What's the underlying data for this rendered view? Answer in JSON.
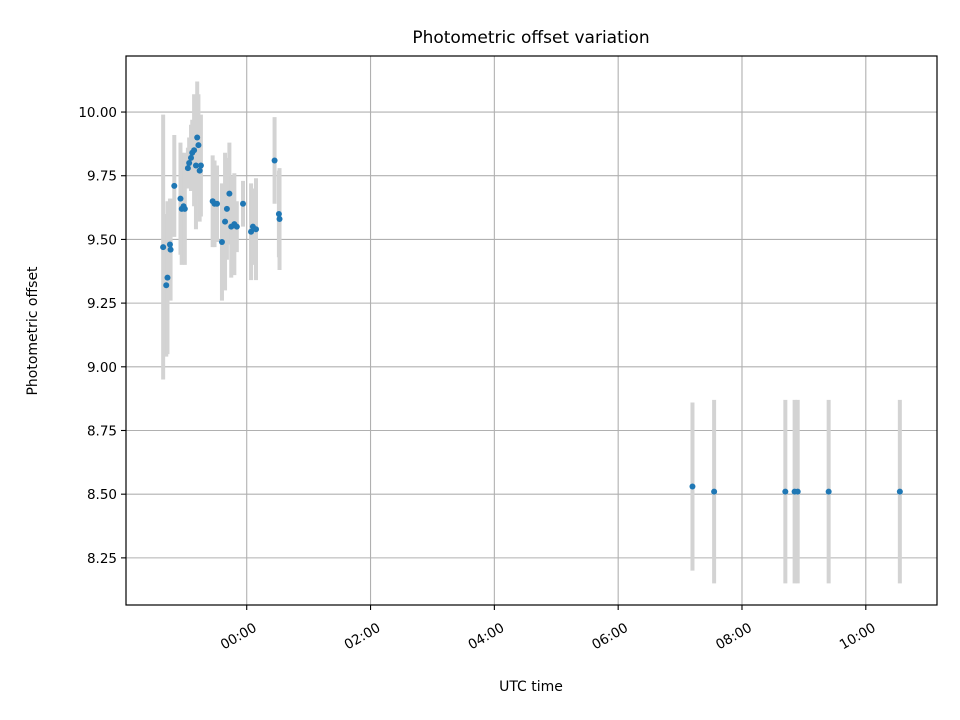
{
  "chart_data": {
    "type": "scatter",
    "title": "Photometric offset variation",
    "xlabel": "UTC time",
    "ylabel": "Photometric offset",
    "x_unit": "hours",
    "xlim": [
      -1.95,
      11.15
    ],
    "ylim": [
      8.065,
      10.22
    ],
    "x_ticks": [
      {
        "value": 0,
        "label": "00:00"
      },
      {
        "value": 2,
        "label": "02:00"
      },
      {
        "value": 4,
        "label": "04:00"
      },
      {
        "value": 6,
        "label": "06:00"
      },
      {
        "value": 8,
        "label": "08:00"
      },
      {
        "value": 10,
        "label": "10:00"
      }
    ],
    "y_ticks": [
      {
        "value": 8.25,
        "label": "8.25"
      },
      {
        "value": 8.5,
        "label": "8.50"
      },
      {
        "value": 8.75,
        "label": "8.75"
      },
      {
        "value": 9.0,
        "label": "9.00"
      },
      {
        "value": 9.25,
        "label": "9.25"
      },
      {
        "value": 9.5,
        "label": "9.50"
      },
      {
        "value": 9.75,
        "label": "9.75"
      },
      {
        "value": 10.0,
        "label": "10.00"
      }
    ],
    "grid": true,
    "point_color": "#1f77b4",
    "errorbar_color": "#d3d3d3",
    "points": [
      {
        "x": -1.35,
        "y": 9.47,
        "err": 0.52
      },
      {
        "x": -1.3,
        "y": 9.32,
        "err": 0.28
      },
      {
        "x": -1.28,
        "y": 9.35,
        "err": 0.3
      },
      {
        "x": -1.24,
        "y": 9.48,
        "err": 0.18
      },
      {
        "x": -1.23,
        "y": 9.46,
        "err": 0.2
      },
      {
        "x": -1.17,
        "y": 9.71,
        "err": 0.2
      },
      {
        "x": -1.07,
        "y": 9.66,
        "err": 0.22
      },
      {
        "x": -1.05,
        "y": 9.62,
        "err": 0.22
      },
      {
        "x": -1.02,
        "y": 9.63,
        "err": 0.18
      },
      {
        "x": -1.0,
        "y": 9.62,
        "err": 0.22
      },
      {
        "x": -0.95,
        "y": 9.78,
        "err": 0.08
      },
      {
        "x": -0.93,
        "y": 9.8,
        "err": 0.1
      },
      {
        "x": -0.9,
        "y": 9.82,
        "err": 0.13
      },
      {
        "x": -0.88,
        "y": 9.84,
        "err": 0.13
      },
      {
        "x": -0.85,
        "y": 9.85,
        "err": 0.22
      },
      {
        "x": -0.82,
        "y": 9.79,
        "err": 0.25
      },
      {
        "x": -0.8,
        "y": 9.9,
        "err": 0.22
      },
      {
        "x": -0.78,
        "y": 9.87,
        "err": 0.2
      },
      {
        "x": -0.76,
        "y": 9.77,
        "err": 0.2
      },
      {
        "x": -0.74,
        "y": 9.79,
        "err": 0.2
      },
      {
        "x": -0.55,
        "y": 9.65,
        "err": 0.18
      },
      {
        "x": -0.52,
        "y": 9.64,
        "err": 0.17
      },
      {
        "x": -0.48,
        "y": 9.64,
        "err": 0.15
      },
      {
        "x": -0.4,
        "y": 9.49,
        "err": 0.23
      },
      {
        "x": -0.35,
        "y": 9.57,
        "err": 0.27
      },
      {
        "x": -0.32,
        "y": 9.62,
        "err": 0.2
      },
      {
        "x": -0.28,
        "y": 9.68,
        "err": 0.2
      },
      {
        "x": -0.25,
        "y": 9.55,
        "err": 0.2
      },
      {
        "x": -0.2,
        "y": 9.56,
        "err": 0.2
      },
      {
        "x": -0.16,
        "y": 9.55,
        "err": 0.1
      },
      {
        "x": -0.06,
        "y": 9.64,
        "err": 0.09
      },
      {
        "x": 0.07,
        "y": 9.53,
        "err": 0.19
      },
      {
        "x": 0.1,
        "y": 9.55,
        "err": 0.15
      },
      {
        "x": 0.15,
        "y": 9.54,
        "err": 0.2
      },
      {
        "x": 0.45,
        "y": 9.81,
        "err": 0.17
      },
      {
        "x": 0.52,
        "y": 9.6,
        "err": 0.17
      },
      {
        "x": 0.53,
        "y": 9.58,
        "err": 0.2
      },
      {
        "x": 7.2,
        "y": 8.53,
        "err": 0.33
      },
      {
        "x": 7.55,
        "y": 8.51,
        "err": 0.36
      },
      {
        "x": 8.7,
        "y": 8.51,
        "err": 0.36
      },
      {
        "x": 8.85,
        "y": 8.51,
        "err": 0.36
      },
      {
        "x": 8.9,
        "y": 8.51,
        "err": 0.36
      },
      {
        "x": 9.4,
        "y": 8.51,
        "err": 0.36
      },
      {
        "x": 10.55,
        "y": 8.51,
        "err": 0.36
      }
    ]
  }
}
